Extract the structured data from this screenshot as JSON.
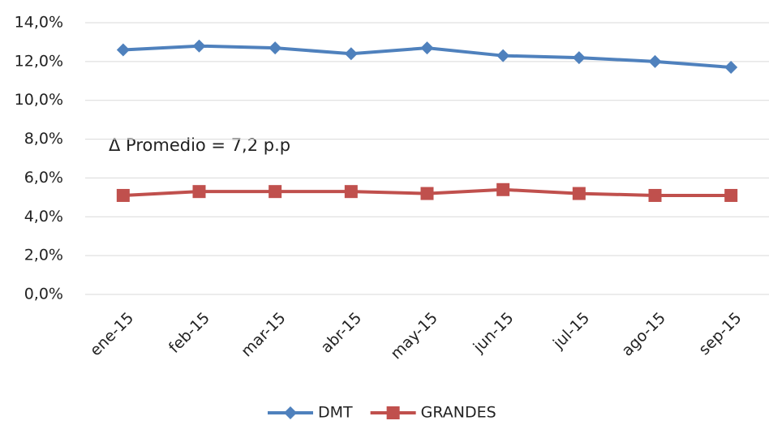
{
  "chart_data": {
    "type": "line",
    "categories": [
      "ene-15",
      "feb-15",
      "mar-15",
      "abr-15",
      "may-15",
      "jun-15",
      "jul-15",
      "ago-15",
      "sep-15"
    ],
    "series": [
      {
        "name": "DMT",
        "color": "#4f81bd",
        "marker": "diamond",
        "values": [
          12.6,
          12.8,
          12.7,
          12.4,
          12.7,
          12.3,
          12.2,
          12.0,
          11.7
        ]
      },
      {
        "name": "GRANDES",
        "color": "#c0504d",
        "marker": "square",
        "values": [
          5.1,
          5.3,
          5.3,
          5.3,
          5.2,
          5.4,
          5.2,
          5.1,
          5.1
        ]
      }
    ],
    "ylim": [
      0,
      14
    ],
    "yticks": [
      {
        "value": 0,
        "label": "0,0%"
      },
      {
        "value": 2,
        "label": "2,0%"
      },
      {
        "value": 4,
        "label": "4,0%"
      },
      {
        "value": 6,
        "label": "6,0%"
      },
      {
        "value": 8,
        "label": "8,0%"
      },
      {
        "value": 10,
        "label": "10,0%"
      },
      {
        "value": 12,
        "label": "12,0%"
      },
      {
        "value": 14,
        "label": "14,0%"
      }
    ],
    "grid": true,
    "annotation": "Δ Promedio = 7,2 p.p",
    "legend": "bottom"
  }
}
